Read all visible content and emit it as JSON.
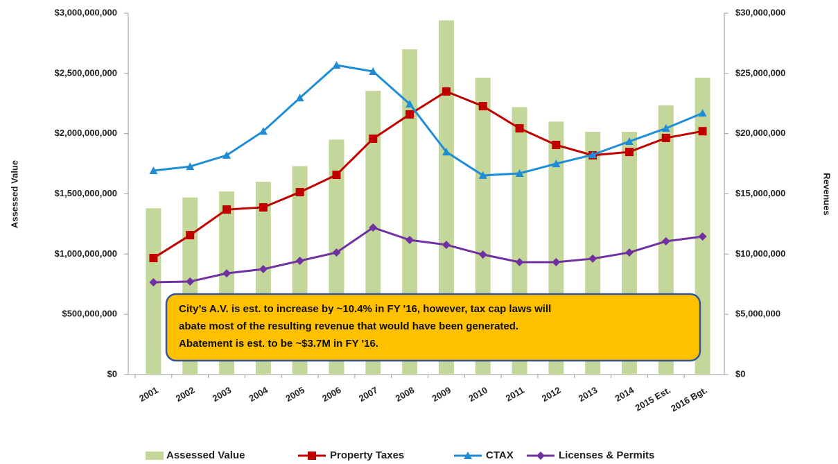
{
  "chart_data": {
    "type": "bar_line",
    "categories": [
      "2001",
      "2002",
      "2003",
      "2004",
      "2005",
      "2006",
      "2007",
      "2008",
      "2009",
      "2010",
      "2011",
      "2012",
      "2013",
      "2014",
      "2015 Est.",
      "2016 Bgt."
    ],
    "series": [
      {
        "name": "Assessed Value",
        "type": "bar",
        "color": "#c4d79b",
        "axis": "y",
        "values": [
          1380000000,
          1470000000,
          1520000000,
          1600000000,
          1730000000,
          1950000000,
          2355000000,
          2700000000,
          2940000000,
          2465000000,
          2220000000,
          2100000000,
          2015000000,
          2015000000,
          2235000000,
          2465000000
        ]
      },
      {
        "name": "Property Taxes",
        "type": "line",
        "marker": "square",
        "color": "#c00000",
        "axis": "y2",
        "values": [
          9670000,
          11570000,
          13700000,
          13880000,
          15140000,
          16580000,
          19580000,
          21600000,
          23500000,
          22280000,
          20440000,
          19060000,
          18200000,
          18480000,
          19640000,
          20200000
        ]
      },
      {
        "name": "CTAX",
        "type": "line",
        "marker": "triangle",
        "color": "#1f8dd6",
        "axis": "y2",
        "values": [
          16930000,
          17270000,
          18200000,
          20200000,
          22970000,
          25680000,
          25160000,
          22460000,
          18480000,
          16530000,
          16700000,
          17500000,
          18250000,
          19350000,
          20440000,
          21700000
        ]
      },
      {
        "name": "Licenses & Permits",
        "type": "line",
        "marker": "diamond",
        "color": "#7030a0",
        "axis": "y2",
        "values": [
          7660000,
          7720000,
          8400000,
          8750000,
          9440000,
          10130000,
          12200000,
          11170000,
          10770000,
          9960000,
          9330000,
          9330000,
          9620000,
          10130000,
          11060000,
          11460000
        ]
      }
    ],
    "ylabel": "Assessed Value",
    "y2label": "Revenues",
    "ylim": [
      0,
      3000000000
    ],
    "yticks": [
      {
        "value": 0,
        "label": "$0"
      },
      {
        "value": 500000000,
        "label": "$500,000,000"
      },
      {
        "value": 1000000000,
        "label": "$1,000,000,000"
      },
      {
        "value": 1500000000,
        "label": "$1,500,000,000"
      },
      {
        "value": 2000000000,
        "label": "$2,000,000,000"
      },
      {
        "value": 2500000000,
        "label": "$2,500,000,000"
      },
      {
        "value": 3000000000,
        "label": "$3,000,000,000"
      }
    ],
    "y2lim": [
      0,
      30000000
    ],
    "y2ticks": [
      {
        "value": 0,
        "label": "$0"
      },
      {
        "value": 5000000,
        "label": "$5,000,000"
      },
      {
        "value": 10000000,
        "label": "$10,000,000"
      },
      {
        "value": 15000000,
        "label": "$15,000,000"
      },
      {
        "value": 20000000,
        "label": "$20,000,000"
      },
      {
        "value": 25000000,
        "label": "$25,000,000"
      },
      {
        "value": 30000000,
        "label": "$30,000,000"
      }
    ],
    "annotation": [
      "City’s A.V. is est. to increase by ~10.4% in FY '16, however, tax cap laws will",
      "abate most of the resulting revenue that would have been generated.",
      "Abatement is est. to be ~$3.7M in FY '16."
    ],
    "legend": "bottom"
  }
}
